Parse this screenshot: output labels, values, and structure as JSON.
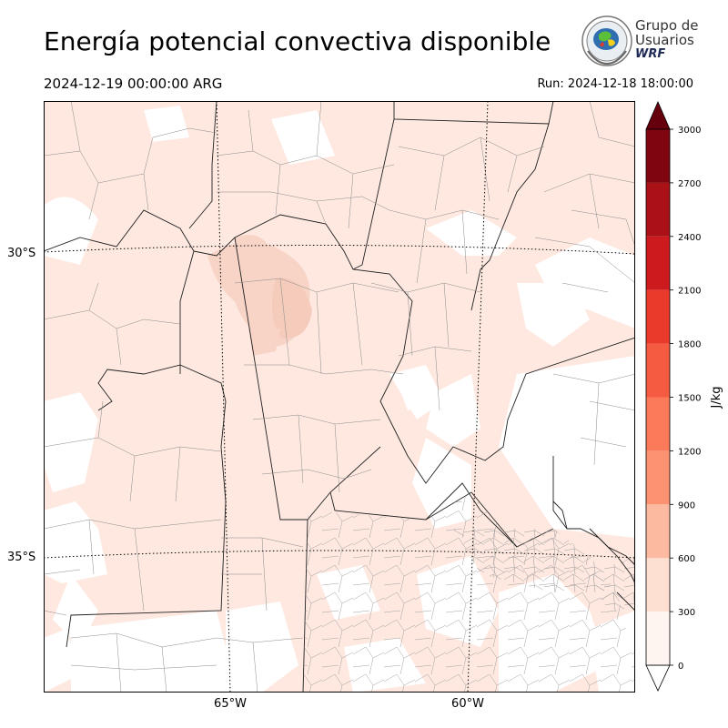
{
  "header": {
    "title": "Energía potencial convectiva disponible",
    "valid_time": "2024-12-19 00:00:00 ARG",
    "run_time": "Run: 2024-12-18 18:00:00"
  },
  "logo": {
    "line1": "Grupo de",
    "line2": "Usuarios",
    "line3": "WRF"
  },
  "map": {
    "variable": "CAPE",
    "lat_labels": [
      "30°S",
      "35°S"
    ],
    "lon_labels": [
      "65°W",
      "60°W"
    ],
    "fill_color": "#fee8e0",
    "fill_color_high": "#f8d4c6",
    "border_color": "#000000"
  },
  "colorbar": {
    "unit_label": "J/kg",
    "ticks": [
      "0",
      "300",
      "600",
      "900",
      "1200",
      "1500",
      "1800",
      "2100",
      "2400",
      "2700",
      "3000"
    ],
    "colors": [
      "#fff5f0",
      "#fde0d2",
      "#fcbba1",
      "#fc9272",
      "#fb7a5a",
      "#f55b40",
      "#ea3a2c",
      "#cc1a1e",
      "#aa1116",
      "#7f0510"
    ],
    "over_color": "#67000d",
    "under_color": "#ffffff"
  }
}
